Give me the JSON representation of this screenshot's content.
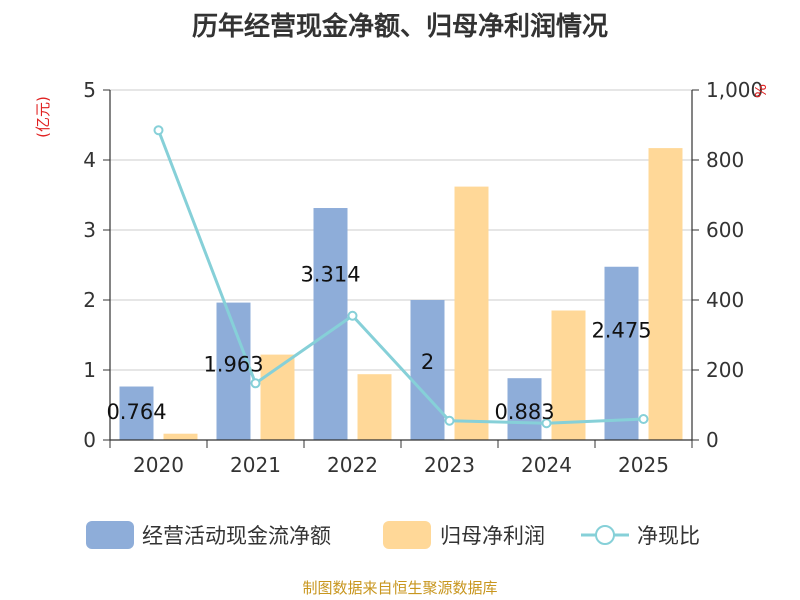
{
  "chart_data": {
    "type": "bar",
    "title": "历年经营现金净额、归母净利润情况",
    "categories": [
      "2020",
      "2021",
      "2022",
      "2023",
      "2024",
      "2025"
    ],
    "y_left": {
      "unit": "(亿元)",
      "min": 0,
      "max": 5,
      "ticks": [
        "0",
        "1",
        "2",
        "3",
        "4",
        "5"
      ]
    },
    "y_right": {
      "unit": "%",
      "min": 0,
      "max": 1000,
      "ticks": [
        "0",
        "200",
        "400",
        "600",
        "800",
        "1,000"
      ]
    },
    "series": [
      {
        "name": "经营活动现金流净额",
        "type": "bar",
        "axis": "left",
        "color": "#8eadd9",
        "values": [
          0.764,
          1.963,
          3.314,
          2,
          0.883,
          2.475
        ],
        "labels": [
          "0.764",
          "1.963",
          "3.314",
          "2",
          "0.883",
          "2.475"
        ]
      },
      {
        "name": "归母净利润",
        "type": "bar",
        "axis": "left",
        "color": "#ffd898",
        "values": [
          0.09,
          1.22,
          0.94,
          3.62,
          1.85,
          4.17
        ]
      },
      {
        "name": "净现比",
        "type": "line",
        "axis": "right",
        "color": "#86d0d8",
        "values": [
          885,
          162,
          355,
          55,
          48,
          60
        ]
      }
    ],
    "legend_position": "bottom",
    "grid": true
  },
  "source_note": "制图数据来自恒生聚源数据库"
}
